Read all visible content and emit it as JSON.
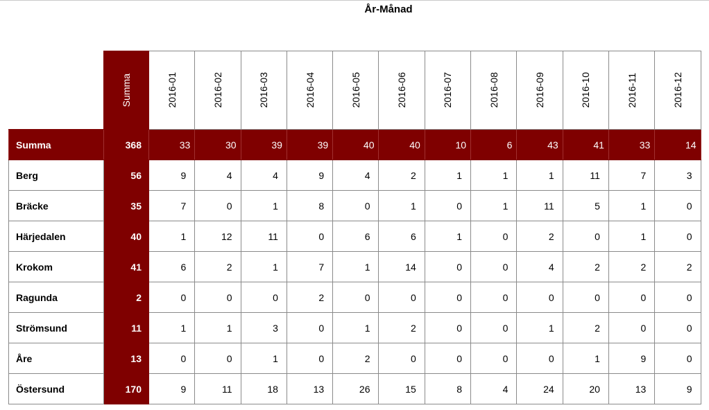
{
  "title": "År-Månad",
  "table": {
    "summa_header": "Summa",
    "months": [
      "2016-01",
      "2016-02",
      "2016-03",
      "2016-04",
      "2016-05",
      "2016-06",
      "2016-07",
      "2016-08",
      "2016-09",
      "2016-10",
      "2016-11",
      "2016-12"
    ],
    "summa_row": {
      "label": "Summa",
      "total": "368",
      "values": [
        "33",
        "30",
        "39",
        "39",
        "40",
        "40",
        "10",
        "6",
        "43",
        "41",
        "33",
        "14"
      ]
    },
    "rows": [
      {
        "label": "Berg",
        "total": "56",
        "values": [
          "9",
          "4",
          "4",
          "9",
          "4",
          "2",
          "1",
          "1",
          "1",
          "11",
          "7",
          "3"
        ]
      },
      {
        "label": "Bräcke",
        "total": "35",
        "values": [
          "7",
          "0",
          "1",
          "8",
          "0",
          "1",
          "0",
          "1",
          "11",
          "5",
          "1",
          "0"
        ]
      },
      {
        "label": "Härjedalen",
        "total": "40",
        "values": [
          "1",
          "12",
          "11",
          "0",
          "6",
          "6",
          "1",
          "0",
          "2",
          "0",
          "1",
          "0"
        ]
      },
      {
        "label": "Krokom",
        "total": "41",
        "values": [
          "6",
          "2",
          "1",
          "7",
          "1",
          "14",
          "0",
          "0",
          "4",
          "2",
          "2",
          "2"
        ]
      },
      {
        "label": "Ragunda",
        "total": "2",
        "values": [
          "0",
          "0",
          "0",
          "2",
          "0",
          "0",
          "0",
          "0",
          "0",
          "0",
          "0",
          "0"
        ]
      },
      {
        "label": "Strömsund",
        "total": "11",
        "values": [
          "1",
          "1",
          "3",
          "0",
          "1",
          "2",
          "0",
          "0",
          "1",
          "2",
          "0",
          "0"
        ]
      },
      {
        "label": "Åre",
        "total": "13",
        "values": [
          "0",
          "0",
          "1",
          "0",
          "2",
          "0",
          "0",
          "0",
          "0",
          "1",
          "9",
          "0"
        ]
      },
      {
        "label": "Östersund",
        "total": "170",
        "values": [
          "9",
          "11",
          "18",
          "13",
          "26",
          "15",
          "8",
          "4",
          "24",
          "20",
          "13",
          "9"
        ]
      }
    ]
  },
  "colors": {
    "header_fill": "#7f0000",
    "header_text": "#ffffff",
    "grid_line": "#8a8a8a"
  }
}
